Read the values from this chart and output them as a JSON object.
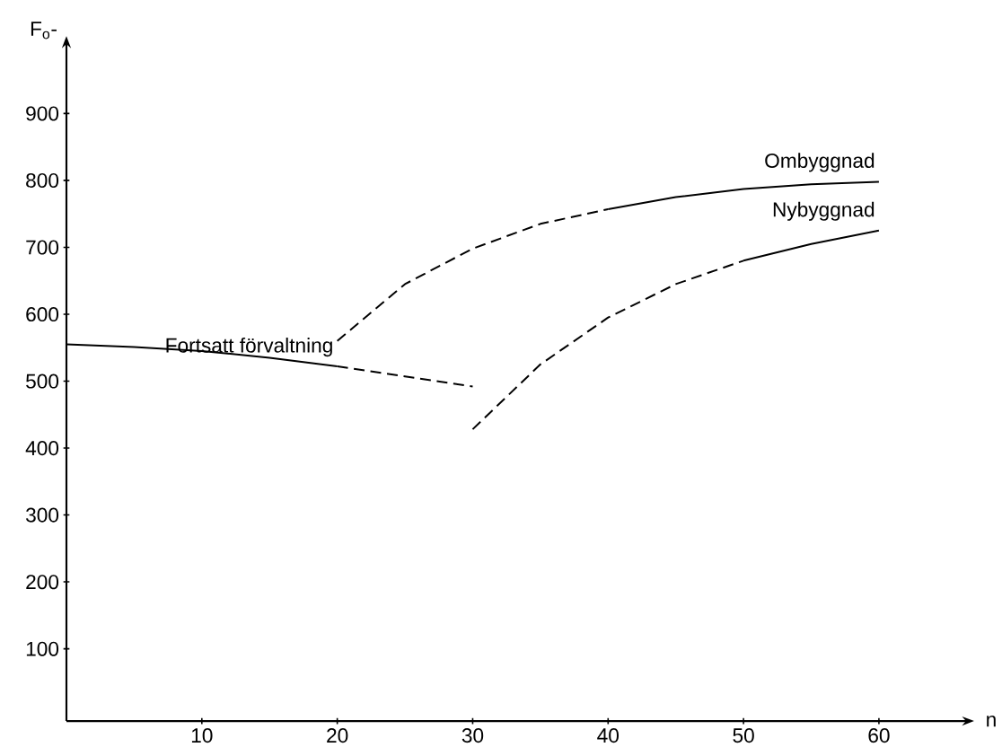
{
  "chart_data": {
    "type": "line",
    "xlabel": "n",
    "ylabel": "F$_{o}$-",
    "xlim": [
      0,
      66.5
    ],
    "ylim": [
      -8,
      1005
    ],
    "xticks": [
      10,
      20,
      30,
      40,
      50,
      60
    ],
    "yticks": [
      100,
      200,
      300,
      400,
      500,
      600,
      700,
      800,
      900
    ],
    "grid": false,
    "legend": false,
    "marker": "none",
    "series": [
      {
        "name": "Fortsatt förvaltning",
        "color": "#000000",
        "line_style": "solid",
        "x": [
          0,
          5,
          10,
          15,
          20
        ],
        "values": [
          555,
          551,
          545,
          535,
          522
        ]
      },
      {
        "color": "#000000",
        "line_style": "dashed",
        "x": [
          20,
          25,
          30
        ],
        "values": [
          522,
          507,
          492
        ]
      },
      {
        "color": "#000000",
        "line_style": "dashed",
        "x": [
          20,
          25,
          30,
          35,
          40
        ],
        "values": [
          560,
          645,
          698,
          735,
          757
        ]
      },
      {
        "name": "Ombyggnad",
        "color": "#000000",
        "line_style": "solid",
        "x": [
          40,
          45,
          50,
          55,
          60
        ],
        "values": [
          757,
          775,
          787,
          794,
          798
        ]
      },
      {
        "color": "#000000",
        "line_style": "dashed",
        "x": [
          30,
          35,
          40,
          45,
          50
        ],
        "values": [
          428,
          525,
          595,
          645,
          680
        ]
      },
      {
        "name": "Nybyggnad",
        "color": "#000000",
        "line_style": "solid",
        "x": [
          50,
          55,
          60
        ],
        "values": [
          680,
          705,
          725
        ]
      }
    ]
  }
}
